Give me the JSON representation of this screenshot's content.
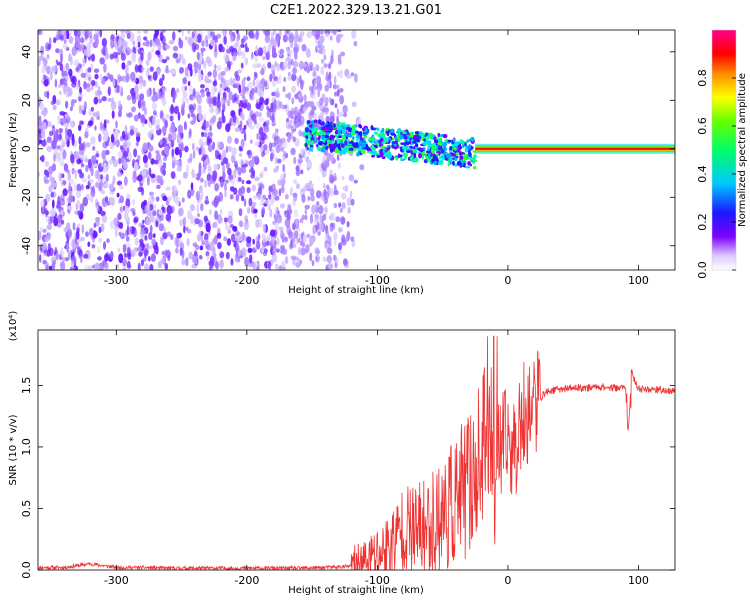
{
  "figure_title": "C2E1.2022.329.13.21.G01",
  "colors": {
    "snr_line": "#ee3333",
    "scatter_low": "#cdb6ff",
    "scatter_high": "#6a00ff"
  },
  "chart_data": [
    {
      "type": "heatmap",
      "title": "",
      "xlabel": "Height of straight line (km)",
      "ylabel": "Frequency (Hz)",
      "xlim": [
        -360,
        128
      ],
      "ylim": [
        -50,
        49
      ],
      "xticks": [
        -300,
        -200,
        -100,
        0,
        100
      ],
      "yticks": [
        -40,
        -20,
        0,
        20,
        40
      ],
      "grid": false,
      "colorbar": {
        "label": "Normalized spectral amplitude",
        "range": [
          0.0,
          1.0
        ],
        "ticks": [
          "0.0",
          "0.2",
          "0.4",
          "0.6",
          "0.8"
        ],
        "colormap": "rainbow (violet-blue-cyan-green-yellow-red-magenta)"
      },
      "features": {
        "diffuse_scatter_x_range": [
          -360,
          -120
        ],
        "diffuse_scatter_freq_range": [
          -50,
          49
        ],
        "cluster_x_range": [
          -155,
          -25
        ],
        "cluster_freq_range": [
          -10,
          8
        ],
        "steady_line_x_range": [
          -25,
          128
        ],
        "steady_line_freq": 0,
        "steady_line_amplitude": 0.85
      }
    },
    {
      "type": "line",
      "title": "",
      "xlabel": "Height of straight line (km)",
      "ylabel": "SNR (10 * v/v)",
      "y_multiplier": "(x10⁴)",
      "xlim": [
        -360,
        128
      ],
      "ylim": [
        0,
        1.95
      ],
      "xticks": [
        -300,
        -200,
        -100,
        0,
        100
      ],
      "yticks": [
        0.0,
        0.5,
        1.0,
        1.5
      ],
      "grid": false,
      "series": [
        {
          "x": [
            -360,
            -340,
            -320,
            -300,
            -280,
            -260,
            -240,
            -220,
            -200,
            -180,
            -160,
            -140,
            -120,
            -110,
            -100,
            -90,
            -80,
            -70,
            -60,
            -50,
            -40,
            -30,
            -20,
            -15,
            -10,
            -5,
            0,
            5,
            10,
            15,
            20,
            25,
            30,
            40,
            50,
            60,
            70,
            80,
            90,
            92,
            95,
            100,
            110,
            120,
            128
          ],
          "y": [
            0.02,
            0.02,
            0.05,
            0.02,
            0.02,
            0.015,
            0.015,
            0.015,
            0.015,
            0.015,
            0.015,
            0.02,
            0.03,
            0.06,
            0.12,
            0.2,
            0.35,
            0.3,
            0.35,
            0.45,
            0.55,
            0.7,
            0.9,
            1.2,
            0.9,
            1.0,
            1.05,
            0.95,
            1.2,
            1.3,
            1.35,
            1.4,
            1.45,
            1.47,
            1.48,
            1.48,
            1.49,
            1.48,
            1.48,
            1.1,
            1.6,
            1.47,
            1.47,
            1.46,
            1.45
          ]
        }
      ]
    }
  ]
}
